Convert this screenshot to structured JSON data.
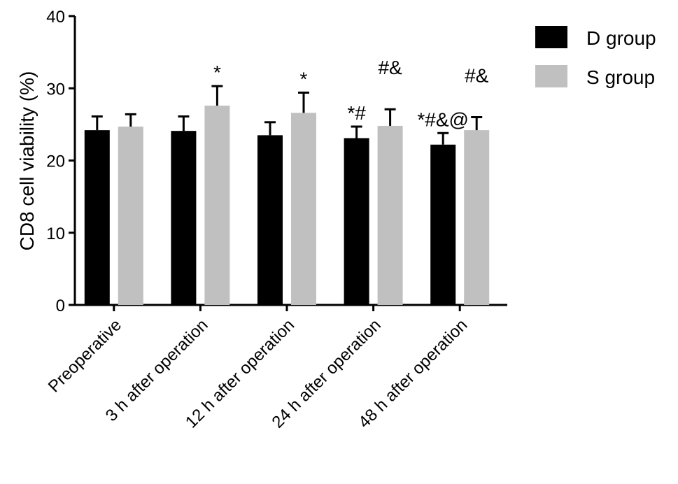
{
  "chart_data": {
    "type": "bar",
    "title": "",
    "xlabel": "",
    "ylabel": "CD8 cell viability (%)",
    "ylim": [
      0,
      40
    ],
    "yticks": [
      0,
      10,
      20,
      30,
      40
    ],
    "grid": false,
    "legend_position": "top-right",
    "categories": [
      "Preoperative",
      "3 h after operation",
      "12 h after operation",
      "24 h after operation",
      "48 h after operation"
    ],
    "series": [
      {
        "name": "D group",
        "color": "#000000",
        "values": [
          24.2,
          24.1,
          23.5,
          23.1,
          22.2
        ],
        "error": [
          1.9,
          2.0,
          1.8,
          1.6,
          1.6
        ]
      },
      {
        "name": "S group",
        "color": "#c0c0c0",
        "values": [
          24.7,
          27.6,
          26.6,
          24.8,
          24.2
        ],
        "error": [
          1.7,
          2.7,
          2.8,
          2.3,
          1.8
        ]
      }
    ],
    "annotations": [
      {
        "category": 1,
        "series": 1,
        "lines": [
          "*"
        ]
      },
      {
        "category": 2,
        "series": 1,
        "lines": [
          "*"
        ]
      },
      {
        "category": 3,
        "series": 0,
        "lines": [
          "*#"
        ]
      },
      {
        "category": 3,
        "series": 1,
        "lines": [
          "#&"
        ]
      },
      {
        "category": 4,
        "series": 0,
        "lines": [
          "*#&@"
        ]
      },
      {
        "category": 4,
        "series": 1,
        "lines": [
          "#&"
        ]
      }
    ]
  }
}
